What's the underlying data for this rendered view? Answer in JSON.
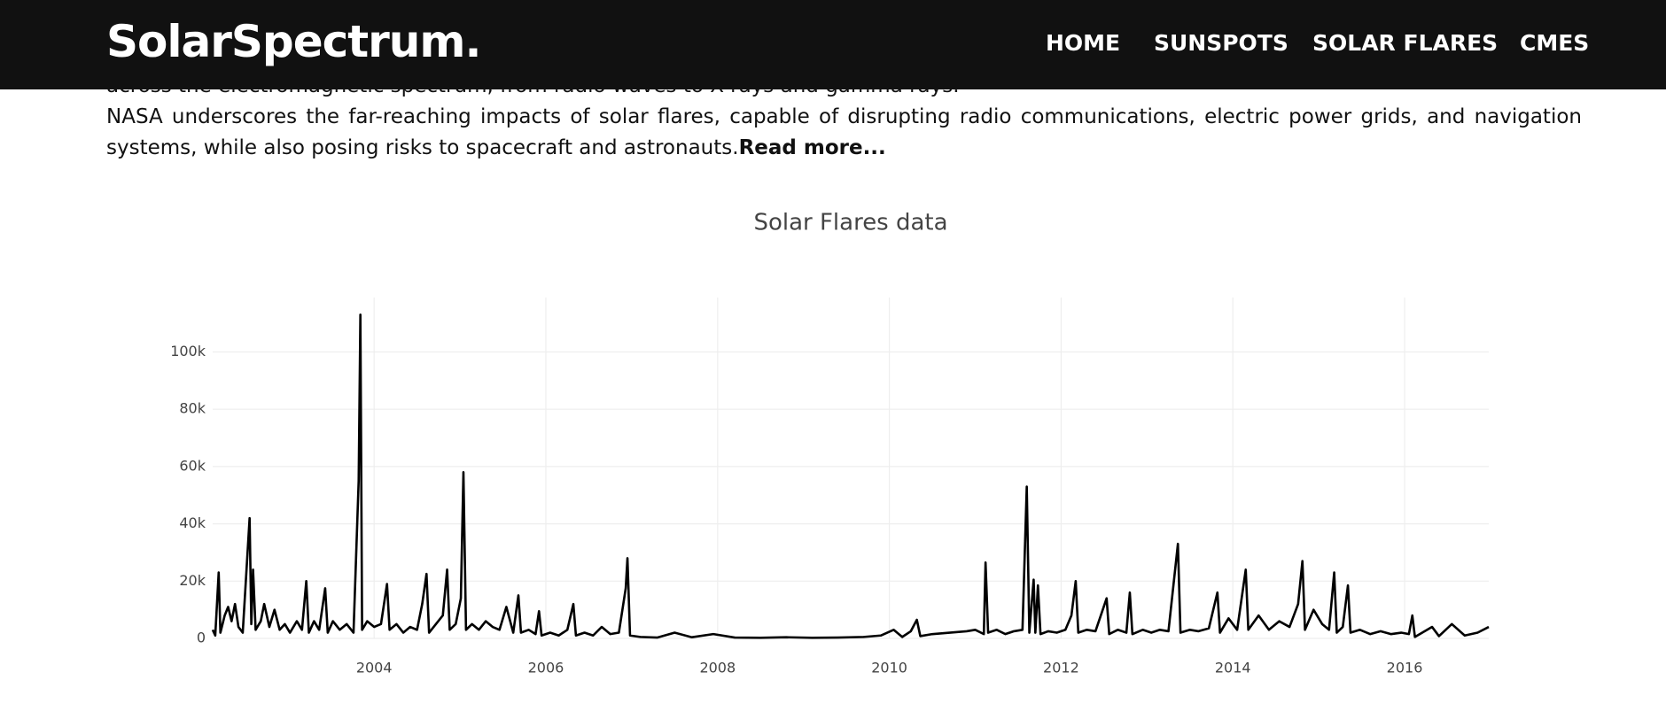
{
  "header": {
    "logo": "SolarSpectrum.",
    "nav": [
      "HOME",
      "SUNSPOTS",
      "SOLAR FLARES",
      "CMES"
    ]
  },
  "content": {
    "previous_line": "across the electromagnetic spectrum, from radio waves to X-rays and gamma rays.",
    "paragraph": "NASA underscores the far-reaching impacts of solar flares, capable of disrupting radio communications, electric power grids, and navigation systems, while also posing risks to spacecraft and astronauts.",
    "read_more": "Read more..."
  },
  "chart_data": {
    "type": "line",
    "title": "Solar Flares data",
    "color": "#000000",
    "grid": true,
    "x": [
      2002.12,
      2002.15,
      2002.19,
      2002.21,
      2002.26,
      2002.3,
      2002.34,
      2002.38,
      2002.42,
      2002.47,
      2002.55,
      2002.57,
      2002.59,
      2002.62,
      2002.68,
      2002.72,
      2002.78,
      2002.84,
      2002.9,
      2002.96,
      2003.02,
      2003.1,
      2003.16,
      2003.21,
      2003.24,
      2003.3,
      2003.36,
      2003.43,
      2003.46,
      2003.52,
      2003.6,
      2003.68,
      2003.76,
      2003.82,
      2003.84,
      2003.86,
      2003.92,
      2004.0,
      2004.08,
      2004.15,
      2004.18,
      2004.26,
      2004.34,
      2004.42,
      2004.5,
      2004.56,
      2004.61,
      2004.64,
      2004.72,
      2004.8,
      2004.85,
      2004.88,
      2004.95,
      2005.01,
      2005.04,
      2005.07,
      2005.14,
      2005.22,
      2005.3,
      2005.38,
      2005.46,
      2005.54,
      2005.62,
      2005.68,
      2005.71,
      2005.8,
      2005.88,
      2005.92,
      2005.95,
      2006.05,
      2006.15,
      2006.25,
      2006.32,
      2006.35,
      2006.45,
      2006.55,
      2006.65,
      2006.75,
      2006.85,
      2006.93,
      2006.95,
      2006.98,
      2007.1,
      2007.3,
      2007.5,
      2007.7,
      2007.95,
      2008.2,
      2008.5,
      2008.8,
      2009.1,
      2009.4,
      2009.7,
      2009.9,
      2010.05,
      2010.15,
      2010.25,
      2010.32,
      2010.36,
      2010.5,
      2010.7,
      2010.9,
      2011.0,
      2011.1,
      2011.12,
      2011.15,
      2011.25,
      2011.35,
      2011.45,
      2011.55,
      2011.6,
      2011.63,
      2011.68,
      2011.7,
      2011.73,
      2011.76,
      2011.85,
      2011.95,
      2012.05,
      2012.12,
      2012.17,
      2012.2,
      2012.3,
      2012.4,
      2012.53,
      2012.56,
      2012.66,
      2012.76,
      2012.8,
      2012.83,
      2012.95,
      2013.05,
      2013.15,
      2013.25,
      2013.36,
      2013.39,
      2013.5,
      2013.6,
      2013.72,
      2013.82,
      2013.85,
      2013.95,
      2014.05,
      2014.15,
      2014.18,
      2014.3,
      2014.42,
      2014.54,
      2014.66,
      2014.76,
      2014.81,
      2014.84,
      2014.94,
      2015.04,
      2015.12,
      2015.18,
      2015.21,
      2015.28,
      2015.34,
      2015.37,
      2015.48,
      2015.6,
      2015.72,
      2015.84,
      2015.96,
      2016.05,
      2016.09,
      2016.12,
      2016.32,
      2016.4,
      2016.55,
      2016.7,
      2016.85,
      2016.98
    ],
    "values": [
      3000,
      1000,
      23000,
      2000,
      8000,
      11000,
      6000,
      12000,
      4000,
      2000,
      42000,
      5000,
      24000,
      3000,
      6000,
      12000,
      4000,
      10000,
      3000,
      5000,
      2000,
      6000,
      3000,
      20000,
      2000,
      6000,
      3000,
      17500,
      2000,
      6000,
      3000,
      5000,
      2000,
      55000,
      113000,
      3000,
      6000,
      4000,
      5000,
      19000,
      3000,
      5000,
      2000,
      4000,
      3000,
      12000,
      22500,
      2000,
      5000,
      8000,
      24000,
      3000,
      5000,
      14000,
      58000,
      3000,
      5000,
      3000,
      6000,
      4000,
      3000,
      11000,
      2000,
      15000,
      2000,
      3000,
      1500,
      9500,
      1000,
      2000,
      1000,
      3000,
      12000,
      1000,
      2000,
      1000,
      4000,
      1500,
      2000,
      17500,
      28000,
      1000,
      500,
      300,
      2000,
      400,
      1500,
      300,
      200,
      400,
      200,
      300,
      500,
      1000,
      3000,
      500,
      2500,
      6500,
      800,
      1500,
      2000,
      2500,
      3000,
      1500,
      26500,
      2000,
      3000,
      1500,
      2500,
      3000,
      53000,
      2000,
      20500,
      2000,
      18500,
      1500,
      2500,
      2000,
      3000,
      8000,
      20000,
      2000,
      3000,
      2500,
      14000,
      1500,
      3000,
      2000,
      16000,
      1500,
      3000,
      2000,
      3000,
      2500,
      33000,
      2000,
      3000,
      2500,
      3500,
      16000,
      2000,
      7000,
      3000,
      24000,
      3000,
      8000,
      3000,
      6000,
      4000,
      12000,
      27000,
      3000,
      10000,
      5000,
      3000,
      23000,
      2000,
      4000,
      18500,
      2000,
      3000,
      1500,
      2500,
      1500,
      2000,
      1500,
      8000,
      500,
      4000,
      800,
      5000,
      1000,
      2000,
      4000
    ],
    "xlim": [
      2002.12,
      2016.98
    ],
    "xticks": [
      2004,
      2006,
      2008,
      2010,
      2012,
      2014,
      2016
    ],
    "ylim": [
      0,
      119000
    ],
    "yticks": [
      0,
      {
        "value": 20000,
        "label": "20k"
      },
      {
        "value": 40000,
        "label": "40k"
      },
      {
        "value": 60000,
        "label": "60k"
      },
      {
        "value": 80000,
        "label": "80k"
      },
      {
        "value": 100000,
        "label": "100k"
      }
    ]
  }
}
